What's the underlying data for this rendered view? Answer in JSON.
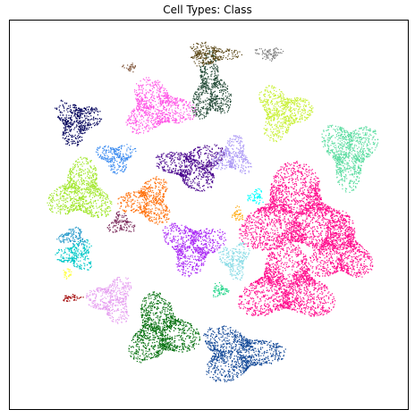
{
  "chart_data": {
    "type": "scatter",
    "title": "Cell Types: Class",
    "xlabel": "",
    "ylabel": "",
    "axes_visible": false,
    "grid": false,
    "legend": "none",
    "clusters": [
      {
        "color": "#ff0a8c",
        "region": "right-large"
      },
      {
        "color": "#ff55e6",
        "region": "top-left-center"
      },
      {
        "color": "#c8f032",
        "region": "top-right"
      },
      {
        "color": "#5adca0",
        "region": "far-right-top"
      },
      {
        "color": "#46008c",
        "region": "center-upper"
      },
      {
        "color": "#ff700a",
        "region": "center-left"
      },
      {
        "color": "#a0e628",
        "region": "left"
      },
      {
        "color": "#006e0a",
        "region": "bottom-center"
      },
      {
        "color": "#0f4696",
        "region": "bottom-right"
      },
      {
        "color": "#aa28f5",
        "region": "center"
      },
      {
        "color": "#8cdce6",
        "region": "center-right"
      },
      {
        "color": "#00c8c8",
        "region": "left-lower"
      },
      {
        "color": "#aa96f5",
        "region": "upper-right-center"
      },
      {
        "color": "#1e4632",
        "region": "top-center"
      },
      {
        "color": "#5a4614",
        "region": "top"
      },
      {
        "color": "#00005a",
        "region": "upper-left"
      },
      {
        "color": "#3c8cf0",
        "region": "upper-left-center"
      },
      {
        "color": "#e6a0f0",
        "region": "lower-left"
      },
      {
        "color": "#1e96c8",
        "region": "left-middle"
      },
      {
        "color": "#7a2a5a",
        "region": "left-center"
      },
      {
        "color": "#a00000",
        "region": "lower-left-small"
      },
      {
        "color": "#ffff46",
        "region": "left-small"
      },
      {
        "color": "#828282",
        "region": "top-right-small"
      },
      {
        "color": "#82583c",
        "region": "top-left-small"
      },
      {
        "color": "#00ffff",
        "region": "center-right-small"
      },
      {
        "color": "#ffa500",
        "region": "center-right-small2"
      },
      {
        "color": "#14d282",
        "region": "lower-center-right"
      }
    ]
  }
}
